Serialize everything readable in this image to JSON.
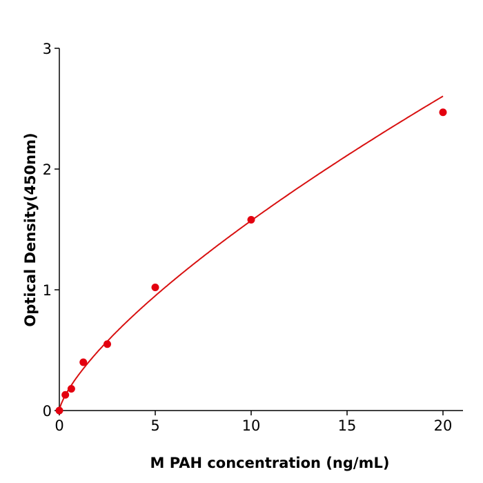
{
  "chart_data": {
    "type": "scatter",
    "title": "",
    "xlabel": "M  PAH concentration (ng/mL)",
    "ylabel": "Optical Density(450nm)",
    "xlim": [
      0,
      21
    ],
    "ylim": [
      0,
      3
    ],
    "x_ticks": [
      "0",
      "5",
      "10",
      "15",
      "20"
    ],
    "y_ticks": [
      "0",
      "1",
      "2",
      "3"
    ],
    "grid": false,
    "fit_line": true,
    "color": "#e3000f",
    "line_color": "#d81010",
    "series": [
      {
        "x": [
          0,
          0.3125,
          0.625,
          1.25,
          2.5,
          5,
          10,
          20
        ],
        "y": [
          0.0,
          0.13,
          0.18,
          0.4,
          0.55,
          1.02,
          1.58,
          2.47
        ]
      }
    ]
  }
}
